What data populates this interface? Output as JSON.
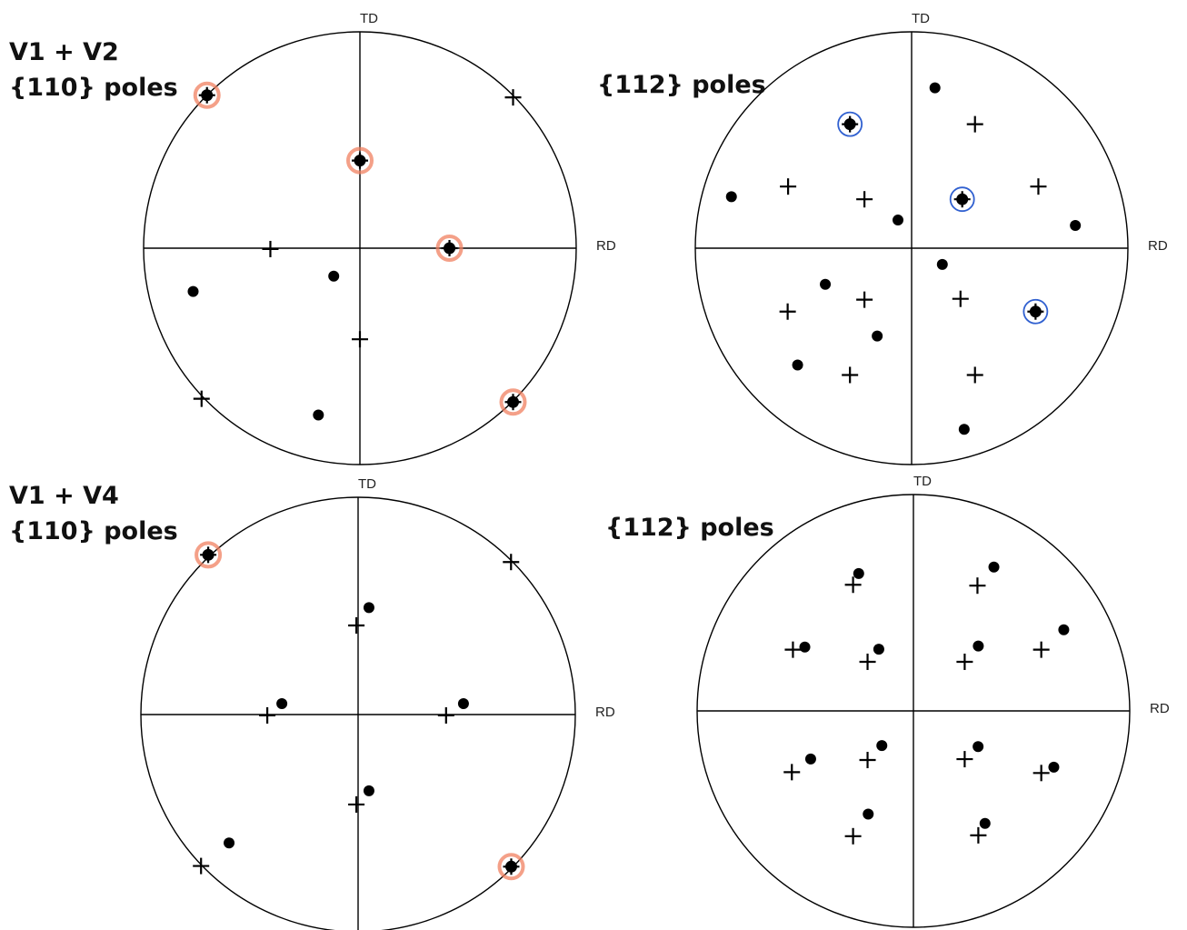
{
  "figure": {
    "row_labels": [
      "V1 + V2",
      "V1 + V4"
    ],
    "axis_labels": {
      "vertical": "TD",
      "horizontal": "RD"
    },
    "colors": {
      "ink": "#000000",
      "halo_red": "#f08060",
      "halo_blue": "#3060d0"
    },
    "legend_symbols": {
      "variant_a": "dot",
      "variant_b": "plus"
    }
  },
  "panels": [
    {
      "id": "v1v2-110",
      "title": "{110} poles",
      "dots": [
        [
          -0.771,
          -0.2
        ],
        [
          -0.121,
          -0.129
        ],
        [
          -0.192,
          -0.771
        ]
      ],
      "pluses": [
        [
          0.708,
          0.697
        ],
        [
          -0.414,
          -0.004
        ],
        [
          0,
          -0.421
        ],
        [
          -0.732,
          -0.696
        ]
      ],
      "coincident": [
        [
          -0.707,
          0.707
        ],
        [
          0,
          0.405
        ],
        [
          0.414,
          0
        ],
        [
          0.708,
          -0.711
        ]
      ],
      "halo": "red"
    },
    {
      "id": "v1v2-112",
      "title": "{112} poles",
      "dots": [
        [
          0.108,
          0.741
        ],
        [
          -0.833,
          0.238
        ],
        [
          -0.063,
          0.13
        ],
        [
          0.757,
          0.105
        ],
        [
          0.142,
          -0.075
        ],
        [
          -0.399,
          -0.167
        ],
        [
          -0.159,
          -0.406
        ],
        [
          -0.527,
          -0.54
        ],
        [
          0.243,
          -0.837
        ]
      ],
      "pluses": [
        [
          0.293,
          0.573
        ],
        [
          -0.571,
          0.285
        ],
        [
          -0.218,
          0.226
        ],
        [
          0.586,
          0.285
        ],
        [
          -0.218,
          -0.238
        ],
        [
          0.226,
          -0.234
        ],
        [
          -0.573,
          -0.293
        ],
        [
          -0.285,
          -0.586
        ],
        [
          0.293,
          -0.586
        ]
      ],
      "coincident": [
        [
          -0.285,
          0.573
        ],
        [
          0.234,
          0.226
        ],
        [
          0.573,
          -0.293
        ]
      ],
      "halo": "blue"
    },
    {
      "id": "v1v4-110",
      "title": "{110} poles",
      "dots": [
        [
          0.05,
          0.492
        ],
        [
          -0.351,
          0.05
        ],
        [
          0.485,
          0.05
        ],
        [
          0.05,
          -0.351
        ],
        [
          -0.594,
          -0.591
        ]
      ],
      "pluses": [
        [
          0.704,
          0.702
        ],
        [
          -0.008,
          0.41
        ],
        [
          -0.418,
          -0.004
        ],
        [
          0.405,
          -0.004
        ],
        [
          -0.008,
          -0.414
        ],
        [
          -0.723,
          -0.697
        ]
      ],
      "coincident": [
        [
          -0.69,
          0.735
        ],
        [
          0.705,
          -0.7
        ]
      ],
      "halo": "red"
    },
    {
      "id": "v1v4-112",
      "title": "{112} poles",
      "dots": [
        [
          -0.253,
          0.635
        ],
        [
          0.372,
          0.665
        ],
        [
          -0.502,
          0.295
        ],
        [
          -0.16,
          0.285
        ],
        [
          0.3,
          0.3
        ],
        [
          0.695,
          0.375
        ],
        [
          -0.475,
          -0.222
        ],
        [
          -0.146,
          -0.16
        ],
        [
          0.299,
          -0.165
        ],
        [
          0.649,
          -0.26
        ],
        [
          -0.209,
          -0.477
        ],
        [
          0.331,
          -0.52
        ]
      ],
      "pluses": [
        [
          -0.279,
          0.583
        ],
        [
          0.296,
          0.579
        ],
        [
          -0.557,
          0.283
        ],
        [
          -0.212,
          0.227
        ],
        [
          0.237,
          0.227
        ],
        [
          0.591,
          0.283
        ],
        [
          -0.562,
          -0.283
        ],
        [
          -0.212,
          -0.227
        ],
        [
          0.237,
          -0.223
        ],
        [
          0.591,
          -0.287
        ],
        [
          -0.279,
          -0.579
        ],
        [
          0.3,
          -0.575
        ]
      ],
      "coincident": [],
      "halo": "none"
    }
  ]
}
